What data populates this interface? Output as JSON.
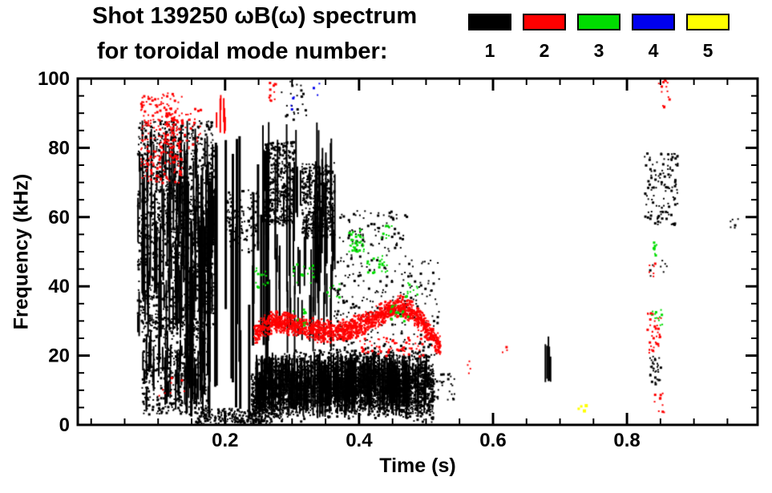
{
  "header": {
    "title_line1": "Shot 139250 ωB(ω) spectrum",
    "title_line2": "for toroidal mode number:",
    "legend": [
      {
        "label": "1",
        "color": "#000000"
      },
      {
        "label": "2",
        "color": "#ff0000"
      },
      {
        "label": "3",
        "color": "#00dd00"
      },
      {
        "label": "4",
        "color": "#0000ee"
      },
      {
        "label": "5",
        "color": "#ffff00"
      }
    ]
  },
  "chart_data": {
    "type": "scatter",
    "title": "Shot 139250 ωB(ω) spectrum for toroidal mode number",
    "xlabel": "Time (s)",
    "ylabel": "Frequency (kHz)",
    "xlim": [
      -0.02,
      0.995
    ],
    "ylim": [
      0,
      100
    ],
    "xticks": [
      {
        "v": 0.2,
        "label": "0.2"
      },
      {
        "v": 0.4,
        "label": "0.4"
      },
      {
        "v": 0.6,
        "label": "0.6"
      },
      {
        "v": 0.8,
        "label": "0.8"
      }
    ],
    "yticks": [
      {
        "v": 0,
        "label": "0"
      },
      {
        "v": 20,
        "label": "20"
      },
      {
        "v": 40,
        "label": "40"
      },
      {
        "v": 60,
        "label": "60"
      },
      {
        "v": 80,
        "label": "80"
      },
      {
        "v": 100,
        "label": "100"
      }
    ],
    "x_minor_step": 0.05,
    "y_minor_step": 5,
    "grid": false,
    "legend_position": "top",
    "modes": [
      {
        "n": 1,
        "color": "#000000"
      },
      {
        "n": 2,
        "color": "#ff0000"
      },
      {
        "n": 3,
        "color": "#00dd00"
      },
      {
        "n": 4,
        "color": "#0000ee"
      },
      {
        "n": 5,
        "color": "#ffff00"
      }
    ],
    "clusters": [
      {
        "mode": 1,
        "type": "vstreaks",
        "t": [
          0.068,
          0.182
        ],
        "f": [
          25,
          88
        ],
        "n": 140,
        "len": [
          4,
          28
        ],
        "w": 2
      },
      {
        "mode": 1,
        "type": "scatter",
        "t": [
          0.068,
          0.182
        ],
        "f": [
          28,
          88
        ],
        "n": 1300,
        "size": 2
      },
      {
        "mode": 1,
        "type": "vstreaks",
        "t": [
          0.075,
          0.175
        ],
        "f": [
          3,
          30
        ],
        "n": 70,
        "len": [
          3,
          14
        ],
        "w": 2
      },
      {
        "mode": 1,
        "type": "scatter",
        "t": [
          0.075,
          0.175
        ],
        "f": [
          3,
          30
        ],
        "n": 450,
        "size": 2
      },
      {
        "mode": 1,
        "type": "vstreaks",
        "t": [
          0.14,
          0.262
        ],
        "f": [
          1,
          86
        ],
        "n": 30,
        "len": [
          18,
          70
        ],
        "w": 3
      },
      {
        "mode": 1,
        "type": "scatter",
        "t": [
          0.198,
          0.248
        ],
        "f": [
          50,
          68
        ],
        "n": 130,
        "size": 2
      },
      {
        "mode": 1,
        "type": "vstreaks",
        "t": [
          0.255,
          0.365
        ],
        "f": [
          20,
          88
        ],
        "n": 85,
        "len": [
          5,
          30
        ],
        "w": 2
      },
      {
        "mode": 1,
        "type": "scatter",
        "t": [
          0.258,
          0.302
        ],
        "f": [
          58,
          82
        ],
        "n": 420,
        "size": 2
      },
      {
        "mode": 1,
        "type": "scatter",
        "t": [
          0.313,
          0.362
        ],
        "f": [
          54,
          76
        ],
        "n": 380,
        "size": 2
      },
      {
        "mode": 1,
        "type": "scatter",
        "t": [
          0.282,
          0.322
        ],
        "f": [
          88,
          100
        ],
        "n": 24,
        "size": 2
      },
      {
        "mode": 1,
        "type": "scatter",
        "t": [
          0.155,
          0.262
        ],
        "f": [
          0.5,
          5
        ],
        "n": 220,
        "size": 2
      },
      {
        "mode": 1,
        "type": "band",
        "t": [
          0.238,
          0.51
        ],
        "centers": [
          [
            0.238,
            6
          ],
          [
            0.25,
            9
          ],
          [
            0.27,
            10.5
          ],
          [
            0.3,
            11.5
          ],
          [
            0.34,
            12
          ],
          [
            0.38,
            12.5
          ],
          [
            0.42,
            12.5
          ],
          [
            0.46,
            12
          ],
          [
            0.49,
            11.5
          ],
          [
            0.51,
            11
          ]
        ],
        "halfwidth": 7.5,
        "n": 3600,
        "size": 2
      },
      {
        "mode": 1,
        "type": "vstreaks",
        "t": [
          0.245,
          0.5
        ],
        "f": [
          2,
          21
        ],
        "n": 260,
        "len": [
          5,
          14
        ],
        "w": 2
      },
      {
        "mode": 1,
        "type": "scatter",
        "t": [
          0.36,
          0.52
        ],
        "f": [
          18,
          48
        ],
        "n": 270,
        "size": 2
      },
      {
        "mode": 1,
        "type": "scatter",
        "t": [
          0.37,
          0.47
        ],
        "f": [
          48,
          62
        ],
        "n": 90,
        "size": 2
      },
      {
        "mode": 1,
        "type": "vstreaks",
        "t": [
          0.676,
          0.685
        ],
        "f": [
          10,
          26
        ],
        "n": 5,
        "len": [
          6,
          14
        ],
        "w": 2
      },
      {
        "mode": 1,
        "type": "scatter",
        "t": [
          0.825,
          0.875
        ],
        "f": [
          58,
          79
        ],
        "n": 120,
        "size": 2
      },
      {
        "mode": 1,
        "type": "scatter",
        "t": [
          0.833,
          0.85
        ],
        "f": [
          12,
          20
        ],
        "n": 32,
        "size": 2
      },
      {
        "mode": 1,
        "type": "scatter",
        "t": [
          0.83,
          0.86
        ],
        "f": [
          43,
          48
        ],
        "n": 8,
        "size": 2
      },
      {
        "mode": 1,
        "type": "scatter",
        "t": [
          0.952,
          0.968
        ],
        "f": [
          57,
          62
        ],
        "n": 6,
        "size": 2
      },
      {
        "mode": 1,
        "type": "scatter",
        "t": [
          0.505,
          0.545
        ],
        "f": [
          7,
          15
        ],
        "n": 26,
        "size": 2
      },
      {
        "mode": 2,
        "type": "scatter",
        "t": [
          0.073,
          0.135
        ],
        "f": [
          70,
          96
        ],
        "n": 230,
        "size": 2
      },
      {
        "mode": 2,
        "type": "scatter",
        "t": [
          0.1,
          0.165
        ],
        "f": [
          80,
          92
        ],
        "n": 70,
        "size": 2
      },
      {
        "mode": 2,
        "type": "vstreaks",
        "t": [
          0.185,
          0.2
        ],
        "f": [
          84,
          96
        ],
        "n": 6,
        "len": [
          4,
          10
        ],
        "w": 2
      },
      {
        "mode": 2,
        "type": "scatter",
        "t": [
          0.1,
          0.14
        ],
        "f": [
          8,
          14
        ],
        "n": 8,
        "size": 2
      },
      {
        "mode": 2,
        "type": "band",
        "t": [
          0.242,
          0.52
        ],
        "centers": [
          [
            0.242,
            26
          ],
          [
            0.255,
            28.5
          ],
          [
            0.27,
            30
          ],
          [
            0.29,
            29.5
          ],
          [
            0.31,
            28.5
          ],
          [
            0.335,
            27.5
          ],
          [
            0.36,
            27
          ],
          [
            0.385,
            28
          ],
          [
            0.405,
            29.5
          ],
          [
            0.425,
            31.5
          ],
          [
            0.445,
            33.5
          ],
          [
            0.46,
            34.5
          ],
          [
            0.475,
            33.5
          ],
          [
            0.49,
            30.5
          ],
          [
            0.505,
            26.5
          ],
          [
            0.52,
            23
          ]
        ],
        "halfwidth": 2.6,
        "n": 1600,
        "size": 2
      },
      {
        "mode": 2,
        "type": "scatter",
        "t": [
          0.4,
          0.5
        ],
        "f": [
          20,
          26
        ],
        "n": 60,
        "size": 2
      },
      {
        "mode": 2,
        "type": "scatter",
        "t": [
          0.262,
          0.275
        ],
        "f": [
          92,
          100
        ],
        "n": 12,
        "size": 2
      },
      {
        "mode": 2,
        "type": "scatter",
        "t": [
          0.558,
          0.566
        ],
        "f": [
          15,
          19
        ],
        "n": 4,
        "size": 2
      },
      {
        "mode": 2,
        "type": "scatter",
        "t": [
          0.612,
          0.62
        ],
        "f": [
          20,
          23
        ],
        "n": 3,
        "size": 2
      },
      {
        "mode": 2,
        "type": "scatter",
        "t": [
          0.828,
          0.85
        ],
        "f": [
          21,
          33
        ],
        "n": 40,
        "size": 2
      },
      {
        "mode": 2,
        "type": "scatter",
        "t": [
          0.845,
          0.862
        ],
        "f": [
          92,
          100
        ],
        "n": 14,
        "size": 2
      },
      {
        "mode": 2,
        "type": "scatter",
        "t": [
          0.832,
          0.842
        ],
        "f": [
          43,
          47
        ],
        "n": 6,
        "size": 2
      },
      {
        "mode": 2,
        "type": "scatter",
        "t": [
          0.838,
          0.855
        ],
        "f": [
          3,
          10
        ],
        "n": 10,
        "size": 2
      },
      {
        "mode": 3,
        "type": "scatter",
        "t": [
          0.243,
          0.262
        ],
        "f": [
          40,
          46
        ],
        "n": 14,
        "size": 2
      },
      {
        "mode": 3,
        "type": "scatter",
        "t": [
          0.298,
          0.332
        ],
        "f": [
          41,
          47
        ],
        "n": 16,
        "size": 2
      },
      {
        "mode": 3,
        "type": "scatter",
        "t": [
          0.3,
          0.322
        ],
        "f": [
          29,
          34
        ],
        "n": 10,
        "size": 2
      },
      {
        "mode": 3,
        "type": "scatter",
        "t": [
          0.35,
          0.372
        ],
        "f": [
          37,
          41
        ],
        "n": 8,
        "size": 2
      },
      {
        "mode": 3,
        "type": "scatter",
        "t": [
          0.383,
          0.408
        ],
        "f": [
          50,
          57
        ],
        "n": 45,
        "size": 2
      },
      {
        "mode": 3,
        "type": "scatter",
        "t": [
          0.41,
          0.442
        ],
        "f": [
          44,
          49
        ],
        "n": 22,
        "size": 2
      },
      {
        "mode": 3,
        "type": "scatter",
        "t": [
          0.432,
          0.452
        ],
        "f": [
          54,
          58
        ],
        "n": 10,
        "size": 2
      },
      {
        "mode": 3,
        "type": "scatter",
        "t": [
          0.445,
          0.472
        ],
        "f": [
          30,
          35
        ],
        "n": 18,
        "size": 2
      },
      {
        "mode": 3,
        "type": "scatter",
        "t": [
          0.468,
          0.487
        ],
        "f": [
          37,
          42
        ],
        "n": 12,
        "size": 2
      },
      {
        "mode": 3,
        "type": "scatter",
        "t": [
          0.836,
          0.847
        ],
        "f": [
          49,
          53
        ],
        "n": 9,
        "size": 2
      },
      {
        "mode": 3,
        "type": "scatter",
        "t": [
          0.836,
          0.852
        ],
        "f": [
          28,
          34
        ],
        "n": 12,
        "size": 2
      },
      {
        "mode": 4,
        "type": "scatter",
        "t": [
          0.297,
          0.305
        ],
        "f": [
          91,
          95
        ],
        "n": 4,
        "size": 2
      },
      {
        "mode": 4,
        "type": "scatter",
        "t": [
          0.33,
          0.34
        ],
        "f": [
          95,
          99
        ],
        "n": 3,
        "size": 2
      },
      {
        "mode": 5,
        "type": "scatter",
        "t": [
          0.726,
          0.737
        ],
        "f": [
          3.5,
          7
        ],
        "n": 4,
        "size": 3
      }
    ]
  }
}
